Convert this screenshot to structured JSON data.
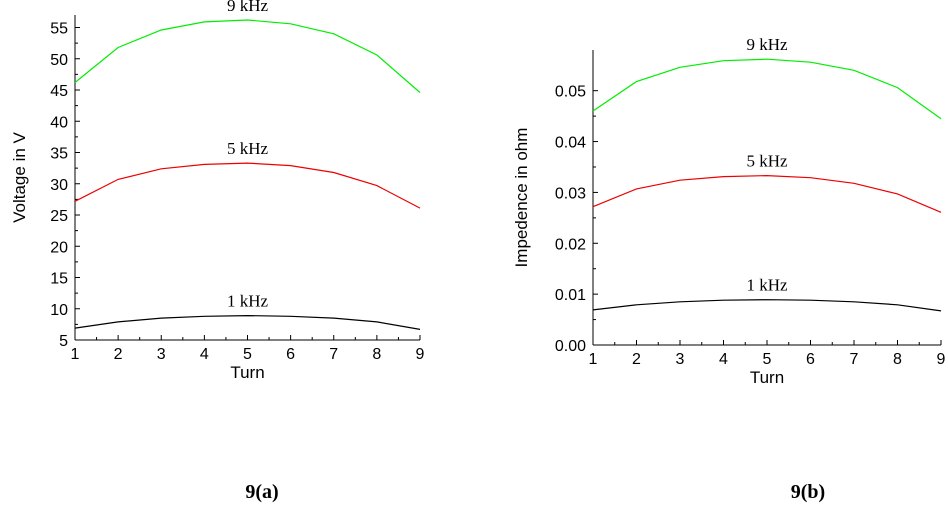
{
  "chart_data": [
    {
      "type": "line",
      "xlabel": "Turn",
      "ylabel": "Voltage in V",
      "xlim": [
        1,
        9
      ],
      "ylim": [
        5,
        57
      ],
      "xticks": [
        1,
        2,
        3,
        4,
        5,
        6,
        7,
        8,
        9
      ],
      "yticks": [
        5,
        10,
        15,
        20,
        25,
        30,
        35,
        40,
        45,
        50,
        55
      ],
      "x": [
        1,
        2,
        3,
        4,
        5,
        6,
        7,
        8,
        9
      ],
      "series": [
        {
          "label": "9 kHz",
          "color": "#00ee00",
          "values": [
            46.2,
            51.8,
            54.6,
            55.9,
            56.2,
            55.6,
            54.0,
            50.6,
            44.6
          ]
        },
        {
          "label": "5 kHz",
          "color": "#ee0000",
          "values": [
            27.2,
            30.7,
            32.4,
            33.1,
            33.3,
            32.9,
            31.8,
            29.7,
            26.1
          ]
        },
        {
          "label": "1 kHz",
          "color": "#000000",
          "values": [
            6.9,
            7.9,
            8.5,
            8.8,
            8.9,
            8.8,
            8.5,
            7.9,
            6.7
          ]
        }
      ],
      "caption": "9(a)"
    },
    {
      "type": "line",
      "xlabel": "Turn",
      "ylabel": "Impedence in ohm",
      "xlim": [
        1,
        9
      ],
      "ylim": [
        0.0,
        0.058
      ],
      "xticks": [
        1,
        2,
        3,
        4,
        5,
        6,
        7,
        8,
        9
      ],
      "yticks": [
        "0.00",
        "0.01",
        "0.02",
        "0.03",
        "0.04",
        "0.05"
      ],
      "x": [
        1,
        2,
        3,
        4,
        5,
        6,
        7,
        8,
        9
      ],
      "series": [
        {
          "label": "9 kHz",
          "color": "#00ee00",
          "values": [
            0.046,
            0.0518,
            0.0546,
            0.0559,
            0.0562,
            0.0556,
            0.054,
            0.0506,
            0.0445
          ]
        },
        {
          "label": "5 kHz",
          "color": "#ee0000",
          "values": [
            0.0272,
            0.0307,
            0.0324,
            0.0331,
            0.0333,
            0.0329,
            0.0318,
            0.0297,
            0.0261
          ]
        },
        {
          "label": "1 kHz",
          "color": "#000000",
          "values": [
            0.0069,
            0.0079,
            0.0085,
            0.0088,
            0.0089,
            0.0088,
            0.0085,
            0.0079,
            0.0067
          ]
        }
      ],
      "caption": "9(b)"
    }
  ]
}
